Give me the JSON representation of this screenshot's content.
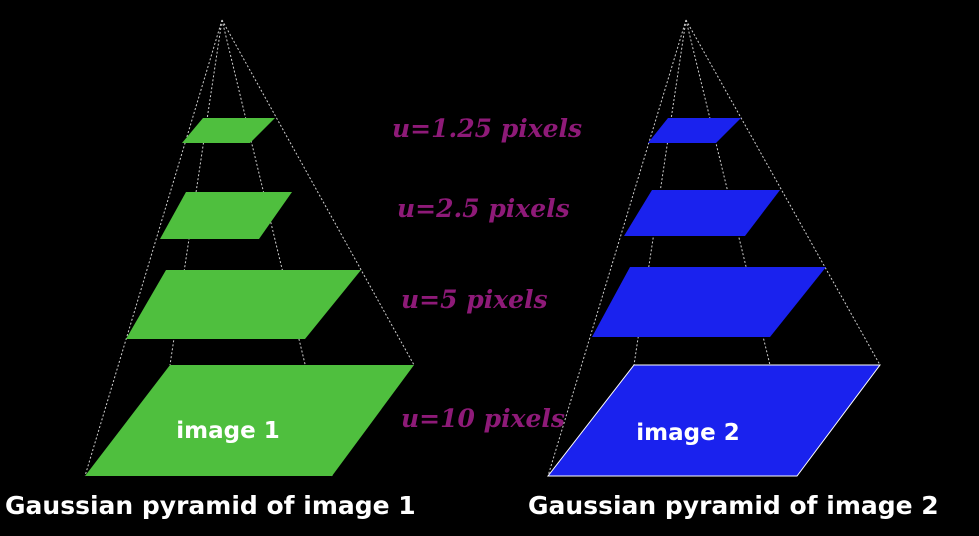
{
  "pyramids": [
    {
      "image_label": "image 1",
      "caption": "Gaussian pyramid of image 1",
      "color": "#4fbf3e"
    },
    {
      "image_label": "image 2",
      "caption": "Gaussian pyramid of image 2",
      "color": "#1a22ee"
    }
  ],
  "scale_labels": [
    "u=1.25 pixels",
    "u=2.5 pixels",
    "u=5 pixels",
    "u=10 pixels"
  ],
  "colors": {
    "background": "#000000",
    "scale_label": "#8e1a78",
    "text": "#ffffff",
    "edges": "#cfcfcf"
  }
}
